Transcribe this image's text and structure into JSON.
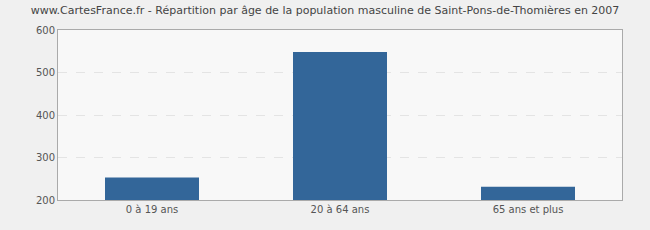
{
  "chart_data": {
    "type": "bar",
    "title": "www.CartesFrance.fr - Répartition par âge de la population masculine de Saint-Pons-de-Thomières en 2007",
    "categories": [
      "0 à 19 ans",
      "20 à 64 ans",
      "65 ans et plus"
    ],
    "values": [
      253,
      548,
      231
    ],
    "color": "#336699",
    "ylim": [
      200,
      600
    ],
    "yticks": [
      200,
      300,
      400,
      500,
      600
    ],
    "grid": true
  }
}
